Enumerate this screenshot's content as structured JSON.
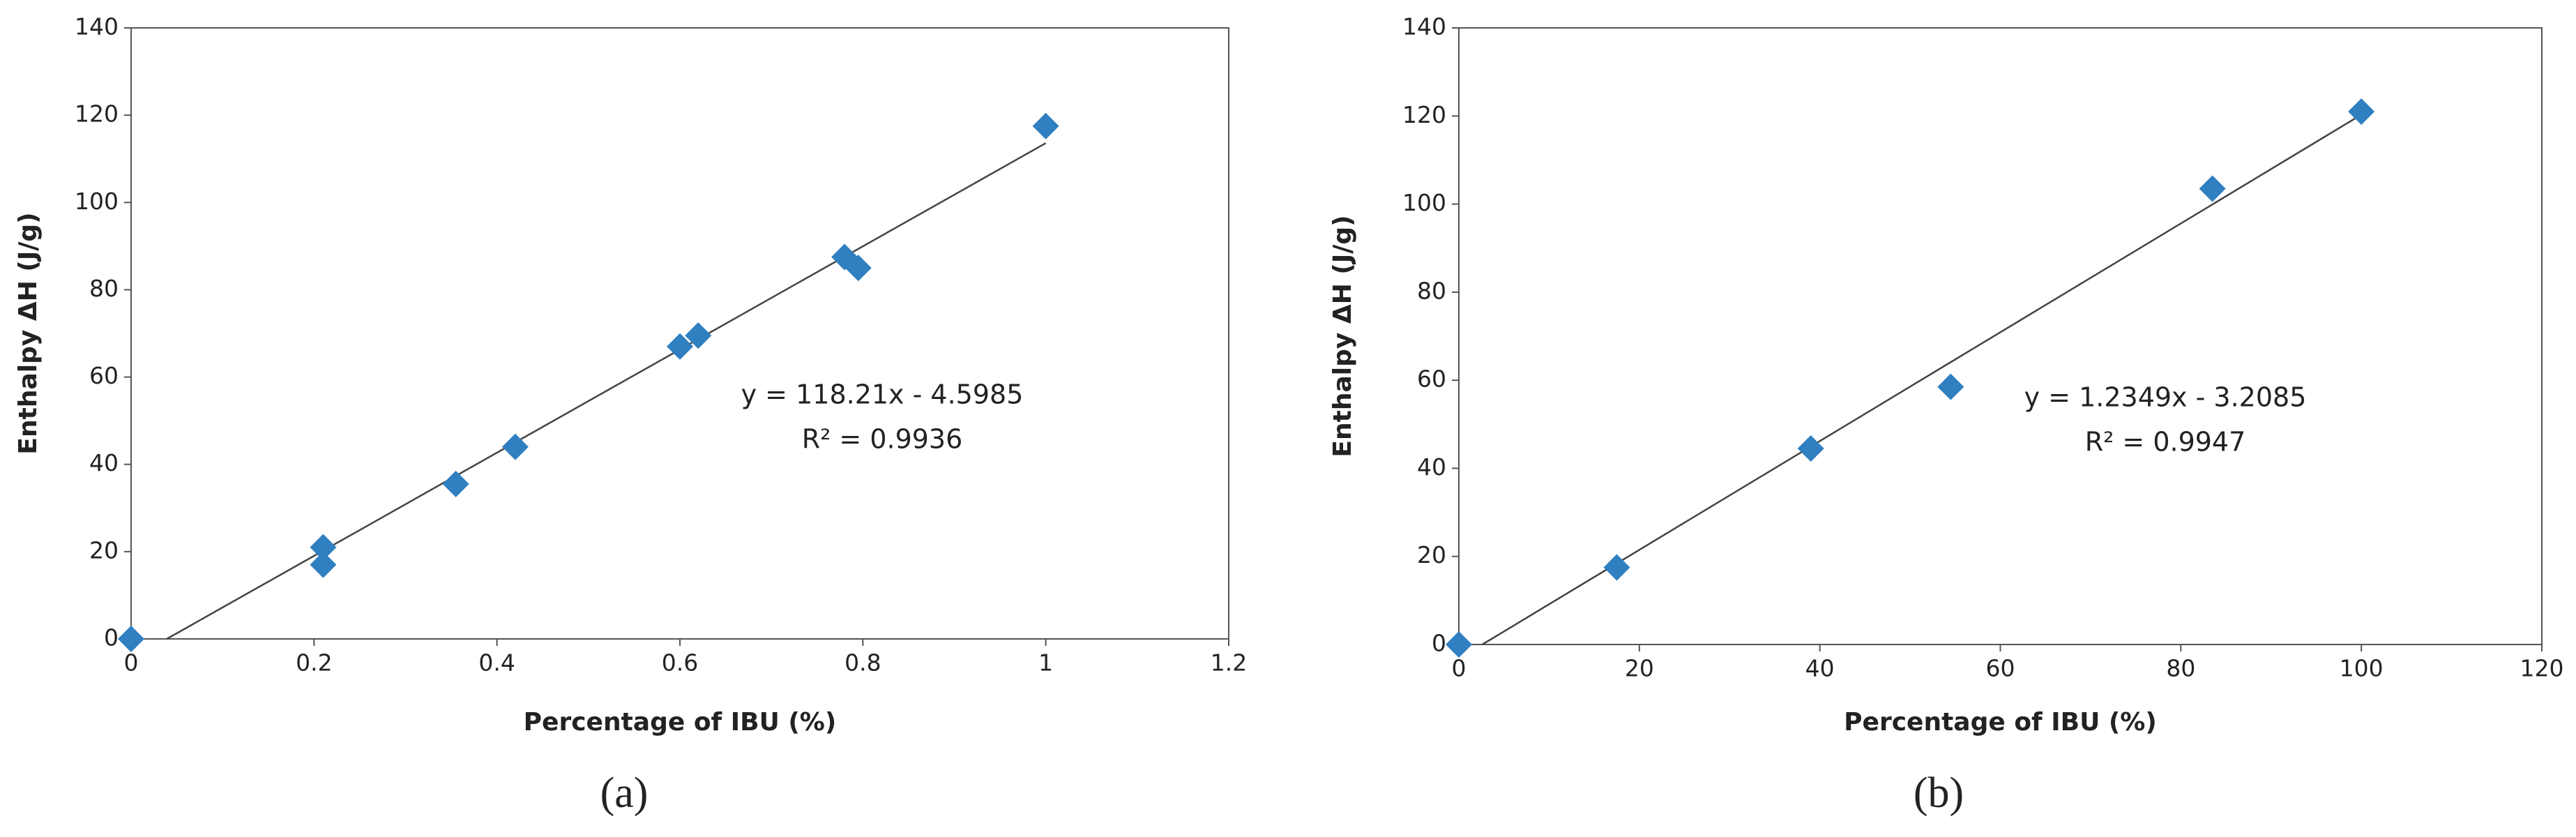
{
  "chart_data": [
    {
      "type": "scatter",
      "caption": "(a)",
      "x_label": "Percentage of IBU (%)",
      "y_label": "Enthalpy ΔH (J/g)",
      "x": [
        0,
        0.21,
        0.21,
        0.355,
        0.42,
        0.6,
        0.62,
        0.78,
        0.795,
        1
      ],
      "values": [
        0,
        21,
        17,
        35.5,
        44,
        67,
        69.5,
        87.5,
        85,
        117.5
      ],
      "color": "#2f7fc1",
      "xlim": [
        0,
        1.2
      ],
      "xticks": [
        0,
        0.2,
        0.4,
        0.6,
        0.8,
        1,
        1.2
      ],
      "ylim": [
        0,
        140
      ],
      "yticks": [
        0,
        20,
        40,
        60,
        80,
        100,
        120,
        140
      ],
      "trendline": {
        "x": [
          0.039,
          1
        ],
        "y": [
          0,
          113.6
        ]
      },
      "annotations": [
        "y = 118.21x - 4.5985",
        "R² = 0.9936"
      ]
    },
    {
      "type": "scatter",
      "caption": "(b)",
      "x_label": "Percentage of IBU (%)",
      "y_label": "Enthalpy ΔH (J/g)",
      "x": [
        0,
        17.5,
        39,
        54.5,
        83.5,
        100
      ],
      "values": [
        0,
        17.5,
        44.5,
        58.5,
        103.5,
        121
      ],
      "color": "#2f7fc1",
      "xlim": [
        0,
        120
      ],
      "xticks": [
        0,
        20,
        40,
        60,
        80,
        100,
        120
      ],
      "ylim": [
        0,
        140
      ],
      "yticks": [
        0,
        20,
        40,
        60,
        80,
        100,
        120,
        140
      ],
      "trendline": {
        "x": [
          2.6,
          100
        ],
        "y": [
          0,
          120.3
        ]
      },
      "annotations": [
        "y = 1.2349x - 3.2085",
        "R² = 0.9947"
      ]
    }
  ]
}
